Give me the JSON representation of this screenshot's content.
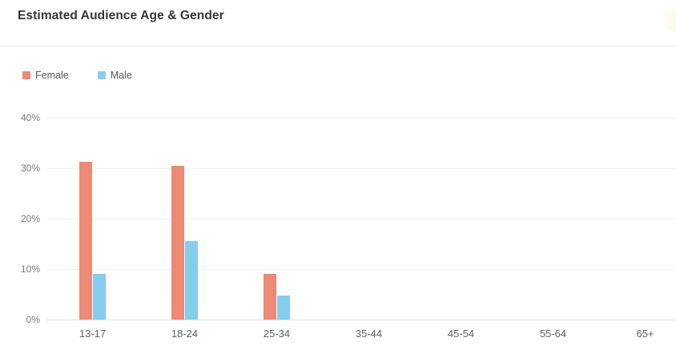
{
  "header": {
    "title": "Estimated Audience Age & Gender"
  },
  "chart_data": {
    "type": "bar",
    "title": "Estimated Audience Age & Gender",
    "categories": [
      "13-17",
      "18-24",
      "25-34",
      "35-44",
      "45-54",
      "55-64",
      "65+"
    ],
    "series": [
      {
        "name": "Female",
        "color": "#ec8a75",
        "values": [
          31.2,
          30.4,
          9.0,
          0,
          0,
          0,
          0
        ]
      },
      {
        "name": "Male",
        "color": "#85cdec",
        "values": [
          9.0,
          15.5,
          4.8,
          0,
          0,
          0,
          0
        ]
      }
    ],
    "xlabel": "",
    "ylabel": "",
    "y_ticks": [
      "40%",
      "30%",
      "20%",
      "10%",
      "0%"
    ],
    "ylim": [
      0,
      40
    ],
    "grid": true,
    "legend_position": "top-left",
    "gridline_color": "#f1f1f1",
    "baseline_color": "#e0e0e0"
  }
}
